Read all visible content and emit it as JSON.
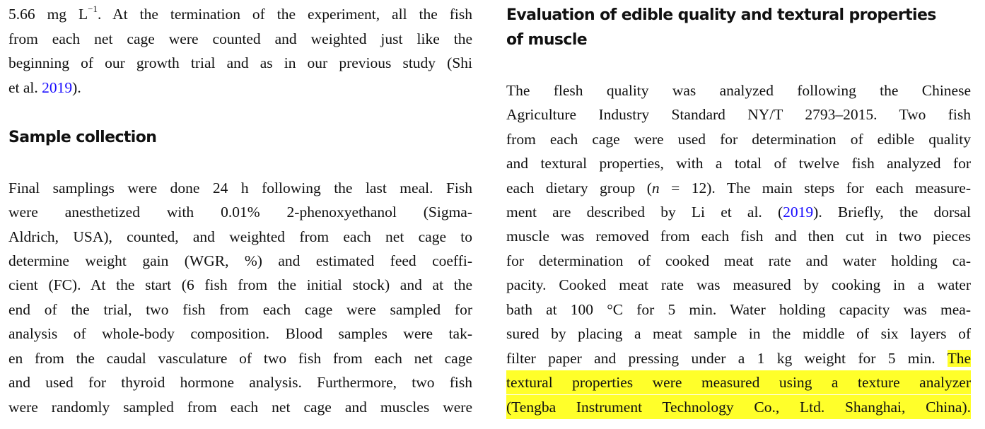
{
  "left": {
    "intro": {
      "l1": {
        "a": "5.66 mg L",
        "sup": "−1",
        "b": ". At the termination of the experiment, all the fish"
      },
      "l2": "from each net cage were counted and weighted just like the",
      "l3": "beginning of our growth trial and as in our previous study (Shi",
      "l4": {
        "a": "et al. ",
        "link": "2019",
        "b": ")."
      }
    },
    "heading": "Sample collection",
    "para": [
      "Final samplings were done 24 h following the last meal. Fish",
      "were anesthetized with 0.01% 2-phenoxyethanol (Sigma-",
      "Aldrich, USA), counted, and weighted from each net cage to",
      "determine weight gain (WGR, %) and estimated feed coeffi-",
      "cient (FC). At the start (6 fish from the initial stock) and at the",
      "end of the trial, two fish from each cage were sampled for",
      "analysis of whole-body composition. Blood samples were tak-",
      "en from the caudal vasculature of two fish from each net cage",
      "and used for thyroid hormone analysis. Furthermore, two fish",
      "were randomly sampled from each net cage and muscles were"
    ]
  },
  "right": {
    "heading": [
      "Evaluation of edible quality and textural properties",
      "of muscle"
    ],
    "para": {
      "l1": "The flesh quality was analyzed following the Chinese",
      "l2": "Agriculture Industry Standard NY/T 2793–2015. Two fish",
      "l3": "from each cage were used for determination of edible quality",
      "l4": "and textural properties, with a total of twelve fish analyzed for",
      "l5": {
        "a": "each dietary group (",
        "i": "n",
        "b": " = 12). The main steps for each measure-"
      },
      "l6": {
        "a": "ment are described by Li et al. (",
        "link": "2019",
        "b": "). Briefly, the dorsal"
      },
      "l7": "muscle was removed from each fish and then cut in two pieces",
      "l8": "for determination of cooked meat rate and water holding ca-",
      "l9": "pacity. Cooked meat rate was measured by cooking in a water",
      "l10": "bath at 100 °C for 5 min. Water holding capacity was mea-",
      "l11": "sured by placing a meat sample in the middle of six layers of",
      "l12": {
        "a": "filter paper and pressing under a 1 kg weight for 5 min. ",
        "hl": "The"
      },
      "l13": "textural properties were measured using a texture analyzer",
      "l14": "(Tengba Instrument Technology Co., Ltd. Shanghai, China)."
    }
  },
  "colors": {
    "link": "#1a0dff",
    "highlight": "#ffff2a"
  }
}
